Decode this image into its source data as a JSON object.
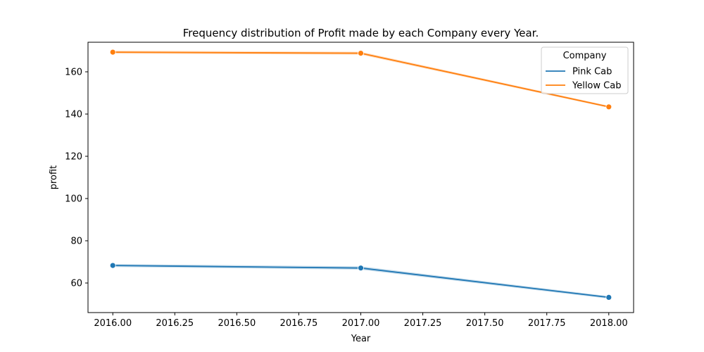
{
  "chart_data": {
    "type": "line",
    "title": "Frequency distribution of Profit made by each Company every Year.",
    "xlabel": "Year",
    "ylabel": "profit",
    "x": [
      2016.0,
      2017.0,
      2018.0
    ],
    "xlim": [
      2015.9,
      2018.1
    ],
    "ylim": [
      46,
      174
    ],
    "xticks": [
      2016.0,
      2016.25,
      2016.5,
      2016.75,
      2017.0,
      2017.25,
      2017.5,
      2017.75,
      2018.0
    ],
    "xtick_labels": [
      "2016.00",
      "2016.25",
      "2016.50",
      "2016.75",
      "2017.00",
      "2017.25",
      "2017.50",
      "2017.75",
      "2018.00"
    ],
    "yticks": [
      60,
      80,
      100,
      120,
      140,
      160
    ],
    "ytick_labels": [
      "60",
      "80",
      "100",
      "120",
      "140",
      "160"
    ],
    "grid": false,
    "legend_title": "Company",
    "legend_position": "top-right",
    "series": [
      {
        "name": "Pink Cab",
        "color": "#1f77b4",
        "values": [
          68.3,
          67.1,
          53.2
        ],
        "ci_lower": [
          67.6,
          66.3,
          52.6
        ],
        "ci_upper": [
          69.0,
          67.9,
          53.8
        ]
      },
      {
        "name": "Yellow Cab",
        "color": "#ff7f0e",
        "values": [
          169.3,
          168.8,
          143.4
        ],
        "ci_lower": [
          168.6,
          168.1,
          142.9
        ],
        "ci_upper": [
          170.0,
          169.5,
          143.9
        ]
      }
    ]
  }
}
